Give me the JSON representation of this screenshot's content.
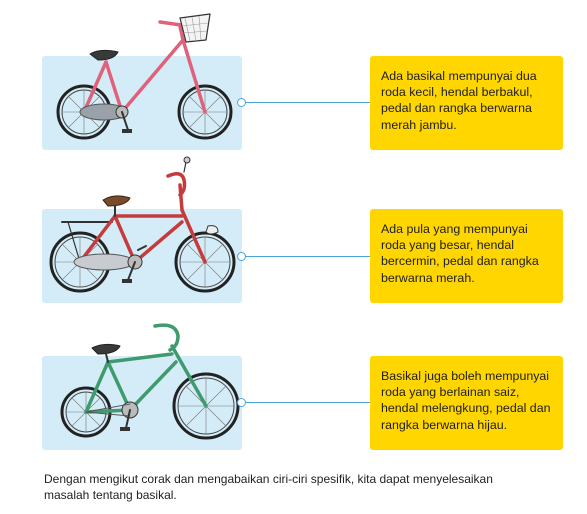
{
  "items": [
    {
      "id": "pink-bicycle",
      "frame_color": "#e0627a",
      "description": "Ada basikal mempunyai dua roda kecil, hendal berbakul, pedal dan rangka berwarna merah jambu."
    },
    {
      "id": "red-bicycle",
      "frame_color": "#c53a3a",
      "description": "Ada pula yang mempunyai roda yang besar, hendal bercermin, pedal dan rangka berwarna merah."
    },
    {
      "id": "green-bicycle",
      "frame_color": "#3f9a6e",
      "description": "Basikal juga boleh mempunyai roda yang berlainan saiz, hendal melengkung, pedal dan rangka berwarna hijau."
    }
  ],
  "caption": "Dengan mengikut corak dan mengabaikan ciri-ciri spesifik, kita dapat menyelesaikan masalah tentang basikal.",
  "colors": {
    "panel": "#d3ecf8",
    "note": "#ffd600",
    "connector": "#4aa5d6"
  }
}
